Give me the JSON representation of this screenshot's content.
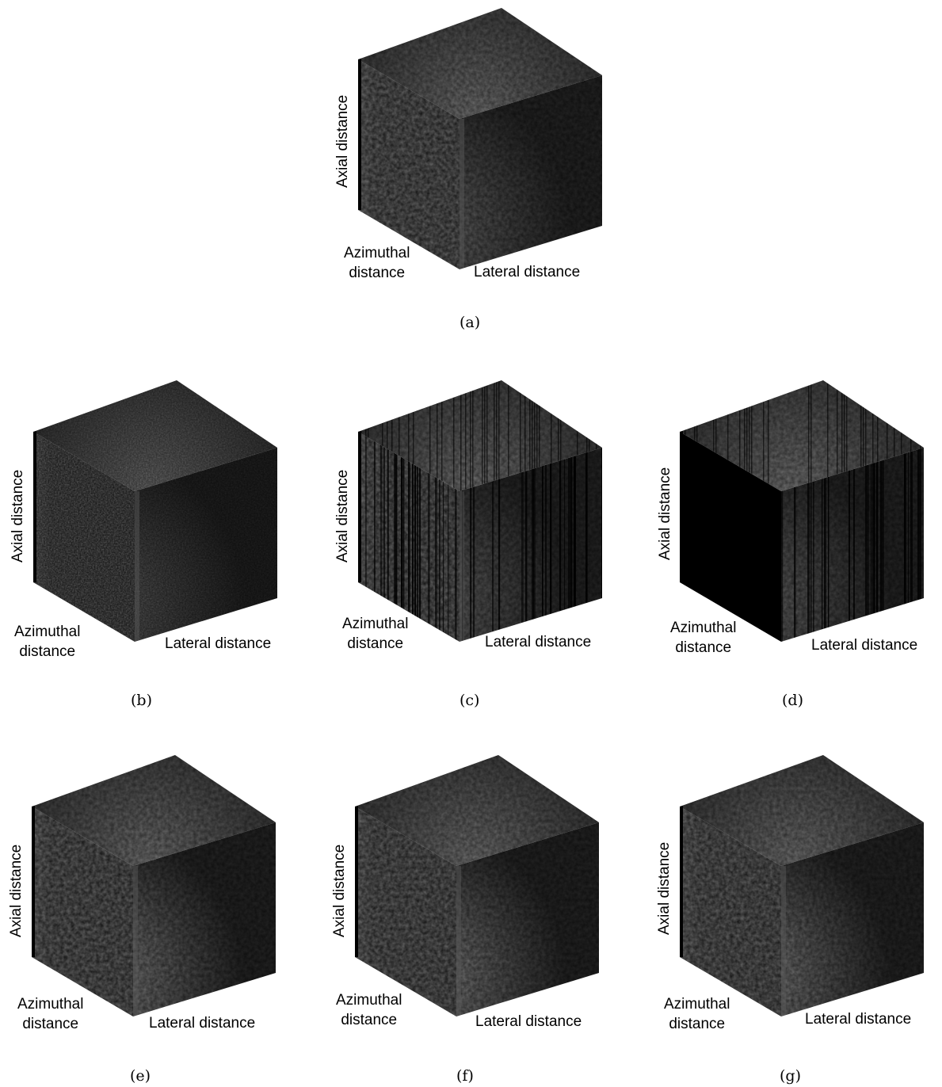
{
  "figure": {
    "panels": [
      {
        "id": "a",
        "caption": "(a)",
        "axial_label": "Axial distance",
        "azimuthal_label": [
          "Azimuthal",
          "distance"
        ],
        "lateral_label": "Lateral distance",
        "style": "speckle"
      },
      {
        "id": "b",
        "caption": "(b)",
        "axial_label": "Axial distance",
        "azimuthal_label": [
          "Azimuthal",
          "distance"
        ],
        "lateral_label": "Lateral distance",
        "style": "noisy"
      },
      {
        "id": "c",
        "caption": "(c)",
        "axial_label": "Axial distance",
        "azimuthal_label": [
          "Azimuthal",
          "distance"
        ],
        "lateral_label": "Lateral distance",
        "style": "striped"
      },
      {
        "id": "d",
        "caption": "(d)",
        "axial_label": "Axial distance",
        "azimuthal_label": [
          "Azimuthal",
          "distance"
        ],
        "lateral_label": "Lateral distance",
        "style": "dark-striped"
      },
      {
        "id": "e",
        "caption": "(e)",
        "axial_label": "Axial distance",
        "azimuthal_label": [
          "Azimuthal",
          "distance"
        ],
        "lateral_label": "Lateral distance",
        "style": "speckle-bright"
      },
      {
        "id": "f",
        "caption": "(f)",
        "axial_label": "Axial distance",
        "azimuthal_label": [
          "Azimuthal",
          "distance"
        ],
        "lateral_label": "Lateral distance",
        "style": "speckle-bright"
      },
      {
        "id": "g",
        "caption": "(g)",
        "axial_label": "Axial distance",
        "azimuthal_label": [
          "Azimuthal",
          "distance"
        ],
        "lateral_label": "Lateral distance",
        "style": "speckle-bright"
      }
    ]
  }
}
